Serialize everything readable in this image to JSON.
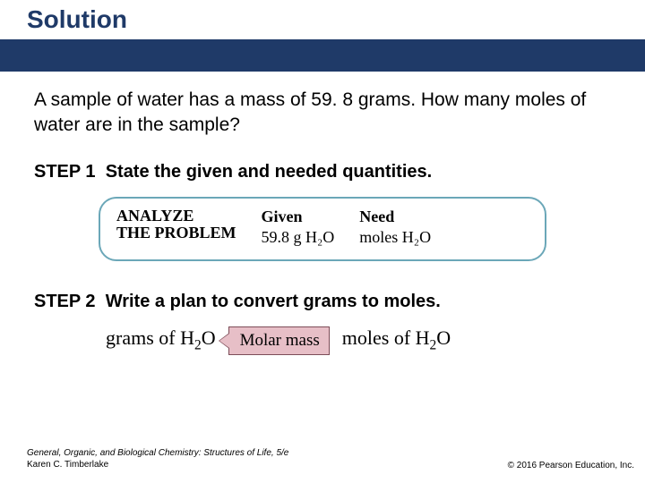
{
  "title": {
    "text": "Solution",
    "color": "#1f3a68"
  },
  "band_color": "#1f3a68",
  "problem": "A sample of water has a mass of 59. 8 grams. How many moles of water are in the sample?",
  "step1": {
    "label": "STEP 1",
    "text": "State the given and needed quantities."
  },
  "analyze": {
    "border_color": "#6ba7b8",
    "col1_line1": "ANALYZE",
    "col1_line2": "THE PROBLEM",
    "col2_head": "Given",
    "col2_val": "59.8 g H₂O",
    "col3_head": "Need",
    "col3_val": "moles H₂O"
  },
  "step2": {
    "label": "STEP 2",
    "text": "Write a plan to convert grams to moles."
  },
  "conversion": {
    "left_prefix": "grams of H",
    "left_sub": "2",
    "left_suffix": "O",
    "box_text": "Molar mass",
    "box_fill": "#e7bfc7",
    "box_border": "#7d4d58",
    "right_prefix": "moles of H",
    "right_sub": "2",
    "right_suffix": "O"
  },
  "footer": {
    "book": "General, Organic, and Biological Chemistry: Structures of Life, 5/e",
    "author": "Karen C. Timberlake",
    "copyright": "© 2016 Pearson Education, Inc."
  }
}
